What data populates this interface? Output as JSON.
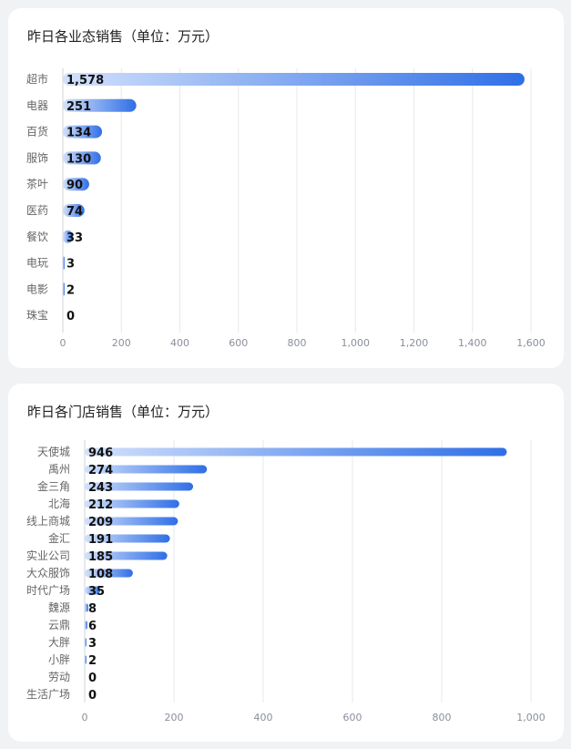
{
  "chart_data": [
    {
      "type": "bar",
      "orientation": "horizontal",
      "title": "昨日各业态销售（单位：万元）",
      "categories": [
        "超市",
        "电器",
        "百货",
        "服饰",
        "茶叶",
        "医药",
        "餐饮",
        "电玩",
        "电影",
        "珠宝"
      ],
      "values": [
        1578,
        251,
        134,
        130,
        90,
        74,
        33,
        3,
        2,
        0
      ],
      "value_labels": [
        "1,578",
        "251",
        "134",
        "130",
        "90",
        "74",
        "33",
        "3",
        "2",
        "0"
      ],
      "xlim": [
        0,
        1600
      ],
      "xticks": [
        "0",
        "200",
        "400",
        "600",
        "800",
        "1,000",
        "1,200",
        "1,400",
        "1,600"
      ],
      "grid": true,
      "bar_gradient": [
        "#d3e1fb",
        "#2f6fe6"
      ]
    },
    {
      "type": "bar",
      "orientation": "horizontal",
      "title": "昨日各门店销售（单位：万元）",
      "categories": [
        "天使城",
        "禹州",
        "金三角",
        "北海",
        "线上商城",
        "金汇",
        "实业公司",
        "大众服饰",
        "时代广场",
        "魏源",
        "云鼎",
        "大胖",
        "小胖",
        "劳动",
        "生活广场"
      ],
      "values": [
        946,
        274,
        243,
        212,
        209,
        191,
        185,
        108,
        35,
        8,
        6,
        3,
        2,
        0,
        0
      ],
      "value_labels": [
        "946",
        "274",
        "243",
        "212",
        "209",
        "191",
        "185",
        "108",
        "35",
        "8",
        "6",
        "3",
        "2",
        "0",
        "0"
      ],
      "xlim": [
        0,
        1000
      ],
      "xticks": [
        "0",
        "200",
        "400",
        "600",
        "800",
        "1,000"
      ],
      "grid": true,
      "bar_gradient": [
        "#d3e1fb",
        "#2f6fe6"
      ]
    }
  ]
}
